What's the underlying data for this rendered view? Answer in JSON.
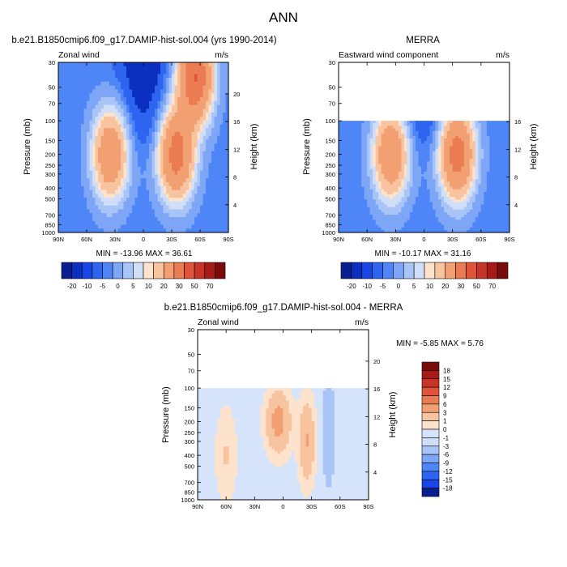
{
  "title": "ANN",
  "colors": {
    "neg": [
      "#0a1f8f",
      "#0b2fbf",
      "#1846e6",
      "#2d64f0",
      "#4f86f7",
      "#7ea6f7",
      "#a9c4f7",
      "#d0def8"
    ],
    "pos": [
      "#fde2cc",
      "#f8c4a0",
      "#f2a072",
      "#eb7b50",
      "#e0553a",
      "#c83426",
      "#a81a18",
      "#7a0b0b"
    ],
    "nearzero_pos": "#fde2cc",
    "nearzero_neg": "#d6e4fb"
  },
  "chart_data": [
    {
      "id": "model",
      "type": "contour",
      "title": "b.e21.B1850cmip6.f09_g17.DAMIP-hist-sol.004 (yrs 1990-2014)",
      "left_label": "Zonal wind",
      "right_label": "m/s",
      "xlabel": "",
      "ylabel": "Pressure (mb)",
      "y2label": "Height (km)",
      "x_ticks": [
        "90N",
        "60N",
        "30N",
        "0",
        "30S",
        "60S",
        "90S"
      ],
      "x_tick_values": [
        90,
        60,
        30,
        0,
        -30,
        -60,
        -90
      ],
      "y_ticks": [
        "30",
        "50",
        "70",
        "100",
        "150",
        "200",
        "250",
        "300",
        "400",
        "500",
        "700",
        "850",
        "1000"
      ],
      "y_tick_values": [
        30,
        50,
        70,
        100,
        150,
        200,
        250,
        300,
        400,
        500,
        700,
        850,
        1000
      ],
      "y2_ticks": [
        "20",
        "16",
        "12",
        "8",
        "4"
      ],
      "y2_tick_values": [
        20,
        16,
        12,
        8,
        4
      ],
      "ylim": [
        1000,
        30
      ],
      "data_top_mb": 30,
      "stats": "MIN = -13.96  MAX =  36.61",
      "min": -13.96,
      "max": 36.61,
      "jets": [
        {
          "lat": 35,
          "p": 200,
          "peak": 25
        },
        {
          "lat": -35,
          "p": 200,
          "peak": 31
        },
        {
          "lat": -55,
          "p": 40,
          "peak": 36
        }
      ]
    },
    {
      "id": "obs",
      "type": "contour",
      "title": "MERRA",
      "left_label": "Eastward wind component",
      "right_label": "m/s",
      "xlabel": "",
      "ylabel": "Pressure (mb)",
      "y2label": "Height (km)",
      "x_ticks": [
        "90N",
        "60N",
        "30N",
        "0",
        "30S",
        "60S",
        "90S"
      ],
      "x_tick_values": [
        90,
        60,
        30,
        0,
        -30,
        -60,
        -90
      ],
      "y_ticks": [
        "30",
        "50",
        "70",
        "100",
        "150",
        "200",
        "250",
        "300",
        "400",
        "500",
        "700",
        "850",
        "1000"
      ],
      "y_tick_values": [
        30,
        50,
        70,
        100,
        150,
        200,
        250,
        300,
        400,
        500,
        700,
        850,
        1000
      ],
      "y2_ticks": [
        "16",
        "12",
        "8",
        "4"
      ],
      "y2_tick_values": [
        16,
        12,
        8,
        4
      ],
      "ylim": [
        1000,
        30
      ],
      "data_top_mb": 100,
      "stats": "MIN = -10.17  MAX =  31.16",
      "min": -10.17,
      "max": 31.16,
      "jets": [
        {
          "lat": 35,
          "p": 200,
          "peak": 25
        },
        {
          "lat": -35,
          "p": 200,
          "peak": 31
        }
      ]
    },
    {
      "id": "diff",
      "type": "contour",
      "title": "b.e21.B1850cmip6.f09_g17.DAMIP-hist-sol.004 - MERRA",
      "left_label": "Zonal wind",
      "right_label": "m/s",
      "xlabel": "",
      "ylabel": "Pressure (mb)",
      "y2label": "Height (km)",
      "x_ticks": [
        "90N",
        "60N",
        "30N",
        "0",
        "30S",
        "60S",
        "90S"
      ],
      "x_tick_values": [
        90,
        60,
        30,
        0,
        -30,
        -60,
        -90
      ],
      "y_ticks": [
        "30",
        "50",
        "70",
        "100",
        "150",
        "200",
        "250",
        "300",
        "400",
        "500",
        "700",
        "850",
        "1000"
      ],
      "y_tick_values": [
        30,
        50,
        70,
        100,
        150,
        200,
        250,
        300,
        400,
        500,
        700,
        850,
        1000
      ],
      "y2_ticks": [
        "20",
        "16",
        "12",
        "8",
        "4"
      ],
      "y2_tick_values": [
        20,
        16,
        12,
        8,
        4
      ],
      "ylim": [
        1000,
        30
      ],
      "data_top_mb": 100,
      "stats": "MIN =  -5.85  MAX =   5.76",
      "min": -5.85,
      "max": 5.76
    }
  ],
  "colorbar_main": {
    "labels": [
      "-20",
      "-10",
      "-5",
      "0",
      "5",
      "10",
      "20",
      "30",
      "50",
      "70"
    ],
    "levels": [
      -20,
      -10,
      -5,
      0,
      5,
      10,
      20,
      30,
      50,
      70
    ]
  },
  "colorbar_diff": {
    "labels": [
      "18",
      "15",
      "12",
      "9",
      "6",
      "3",
      "1",
      "0",
      "-1",
      "-3",
      "-6",
      "-9",
      "-12",
      "-15",
      "-18"
    ],
    "levels": [
      18,
      15,
      12,
      9,
      6,
      3,
      1,
      0,
      -1,
      -3,
      -6,
      -9,
      -12,
      -15,
      -18
    ]
  }
}
